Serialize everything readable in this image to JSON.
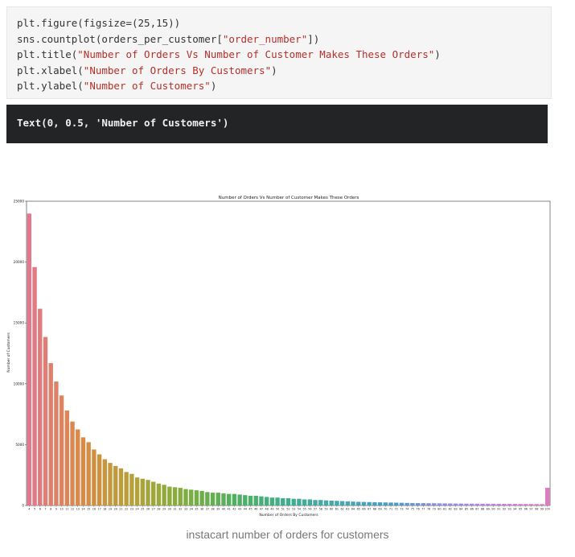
{
  "code_cell": {
    "lines": [
      [
        "plt.figure(figsize=(25,15))",
        ""
      ],
      [
        "sns.countplot(orders_per_customer[",
        "\"order_number\"",
        "])"
      ],
      [
        "plt.title(",
        "\"Number of Orders Vs Number of Customer Makes These Orders\"",
        ")"
      ],
      [
        "plt.xlabel(",
        "\"Number of Orders By Customers\"",
        ")"
      ],
      [
        "plt.ylabel(",
        "\"Number of Customers\"",
        ")"
      ]
    ]
  },
  "output_cell": {
    "text": "Text(0, 0.5, 'Number of Customers')"
  },
  "caption": "instacart number of orders for customers",
  "chart_data": {
    "type": "bar",
    "title": "Number of Orders Vs Number of Customer Makes These Orders",
    "xlabel": "Number of Orders By Customers",
    "ylabel": "Number of Customers",
    "ylim": [
      0,
      25000
    ],
    "yticks": [
      0,
      5000,
      10000,
      15000,
      20000,
      25000
    ],
    "grid": false,
    "categories": [
      "4",
      "5",
      "6",
      "7",
      "8",
      "9",
      "10",
      "11",
      "12",
      "13",
      "14",
      "15",
      "16",
      "17",
      "18",
      "19",
      "20",
      "21",
      "22",
      "23",
      "24",
      "25",
      "26",
      "27",
      "28",
      "29",
      "30",
      "31",
      "32",
      "33",
      "34",
      "35",
      "36",
      "37",
      "38",
      "39",
      "40",
      "41",
      "42",
      "43",
      "44",
      "45",
      "46",
      "47",
      "48",
      "49",
      "50",
      "51",
      "52",
      "53",
      "54",
      "55",
      "56",
      "57",
      "58",
      "59",
      "60",
      "61",
      "62",
      "63",
      "64",
      "65",
      "66",
      "67",
      "68",
      "69",
      "70",
      "71",
      "72",
      "73",
      "74",
      "75",
      "76",
      "77",
      "78",
      "79",
      "80",
      "81",
      "82",
      "83",
      "84",
      "85",
      "86",
      "87",
      "88",
      "89",
      "90",
      "91",
      "92",
      "93",
      "94",
      "95",
      "96",
      "97",
      "98",
      "99",
      "100"
    ],
    "values": [
      23986,
      19590,
      16165,
      13850,
      11700,
      10190,
      9040,
      7800,
      6900,
      6250,
      5600,
      5200,
      4600,
      4200,
      3800,
      3500,
      3250,
      3050,
      2750,
      2600,
      2300,
      2200,
      2100,
      1950,
      1800,
      1700,
      1550,
      1500,
      1450,
      1350,
      1300,
      1250,
      1200,
      1100,
      1050,
      1050,
      1000,
      950,
      950,
      900,
      850,
      800,
      800,
      750,
      700,
      650,
      650,
      600,
      600,
      550,
      550,
      500,
      500,
      450,
      450,
      420,
      400,
      380,
      360,
      340,
      320,
      300,
      290,
      280,
      270,
      260,
      250,
      240,
      230,
      220,
      210,
      200,
      195,
      190,
      185,
      180,
      175,
      170,
      165,
      160,
      155,
      150,
      148,
      145,
      142,
      140,
      138,
      135,
      132,
      130,
      128,
      125,
      122,
      120,
      118,
      115,
      1450
    ],
    "colors_gradient": [
      "#e1788c",
      "#d98a44",
      "#b5a13a",
      "#7fae3e",
      "#4fb062",
      "#41ad8f",
      "#46a8ae",
      "#4a9cc9",
      "#8f8ce3",
      "#c57ee0",
      "#e07ac0"
    ]
  }
}
